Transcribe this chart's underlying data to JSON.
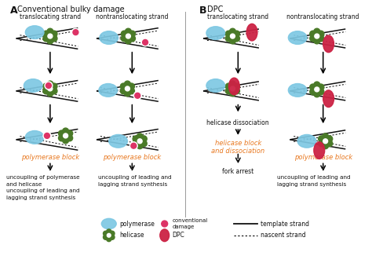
{
  "title_A": "Conventional bulky damage",
  "title_B": "DPC",
  "col_headers": [
    "translocating strand",
    "nontranslocating strand",
    "translocating strand",
    "nontranslocating strand"
  ],
  "orange_labels": {
    "A_left": "polymerase block",
    "A_right": "polymerase block",
    "B_left": "helicase block\nand dissociation",
    "B_right": "polymerase block"
  },
  "black_labels": {
    "A_left_bottom": "uncoupling of polymerase\nand helicase\nuncoupling of leading and\nlagging strand synthesis",
    "A_right_bottom": "uncoupling of leading and\nlagging strand synthesis",
    "B_left_mid": "helicase dissociation",
    "B_left_bottom": "fork arrest",
    "B_right_bottom": "uncoupling of leading and\nlagging strand synthesis"
  },
  "colors": {
    "orange": "#E87820",
    "blue_poly": "#7EC8E3",
    "green_helicase": "#4A7A28",
    "red_damage": "#CC2244",
    "black": "#111111",
    "divider": "#999999",
    "bg": "#FFFFFF"
  },
  "figsize": [
    4.74,
    3.35
  ],
  "dpi": 100
}
